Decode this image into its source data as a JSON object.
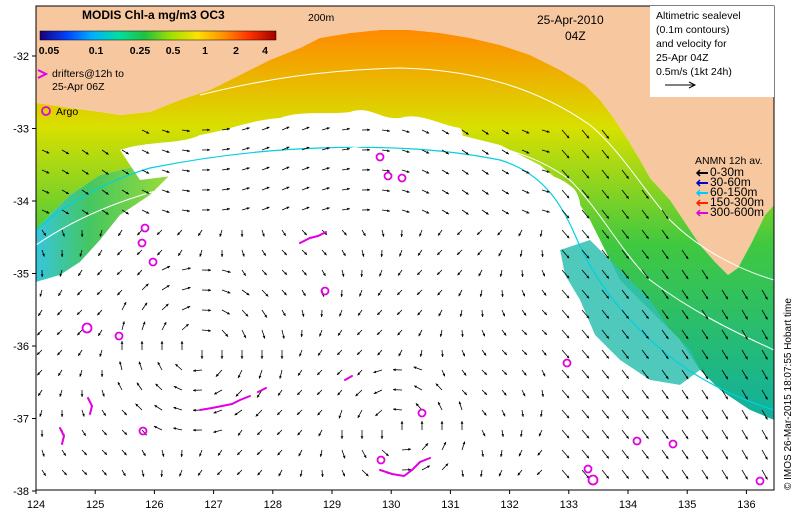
{
  "colorbar": {
    "title": "MODIS Chl-a mg/m3 OC3",
    "ticks": [
      "0.05",
      "0.1",
      "0.25",
      "0.5",
      "1",
      "2",
      "4"
    ],
    "stops": [
      "#1a0078",
      "#0040ff",
      "#00b0ff",
      "#00e0a0",
      "#20c040",
      "#a0e000",
      "#ffe000",
      "#ff9000",
      "#ff3000",
      "#a00000"
    ]
  },
  "isobath_label": "200m",
  "date": {
    "line1": "25-Apr-2010",
    "line2": "04Z"
  },
  "altimetry": {
    "lines": [
      "Altimetric sealevel",
      "(0.1m contours)",
      "and velocity for",
      "25-Apr 04Z",
      "0.5m/s (1kt 24h)"
    ]
  },
  "drifters": {
    "line1": "drifters@12h to",
    "line2": "25-Apr 06Z",
    "color": "#e000e0"
  },
  "argo": {
    "label": "Argo",
    "color": "#e000e0"
  },
  "anmn": {
    "title": "ANMN 12h av.",
    "entries": [
      {
        "label": "0-30m",
        "color": "#000000"
      },
      {
        "label": "30-60m",
        "color": "#0000cc"
      },
      {
        "label": "60-150m",
        "color": "#00c8ff"
      },
      {
        "label": "150-300m",
        "color": "#ff2000"
      },
      {
        "label": "300-600m",
        "color": "#e000e0"
      }
    ]
  },
  "credit": "© IMOS 26-Mar-2015 18:07:55 Hobart time",
  "axes": {
    "x_ticks": [
      "124",
      "125",
      "126",
      "127",
      "128",
      "129",
      "130",
      "131",
      "132",
      "133",
      "134",
      "135",
      "136"
    ],
    "y_ticks": [
      "-32",
      "-33",
      "-34",
      "-35",
      "-36",
      "-37",
      "-38"
    ]
  },
  "colors": {
    "land": "#f7c8a0",
    "shelf_contour": "#00d0e0",
    "sealevel_contour": "#ffffff"
  }
}
